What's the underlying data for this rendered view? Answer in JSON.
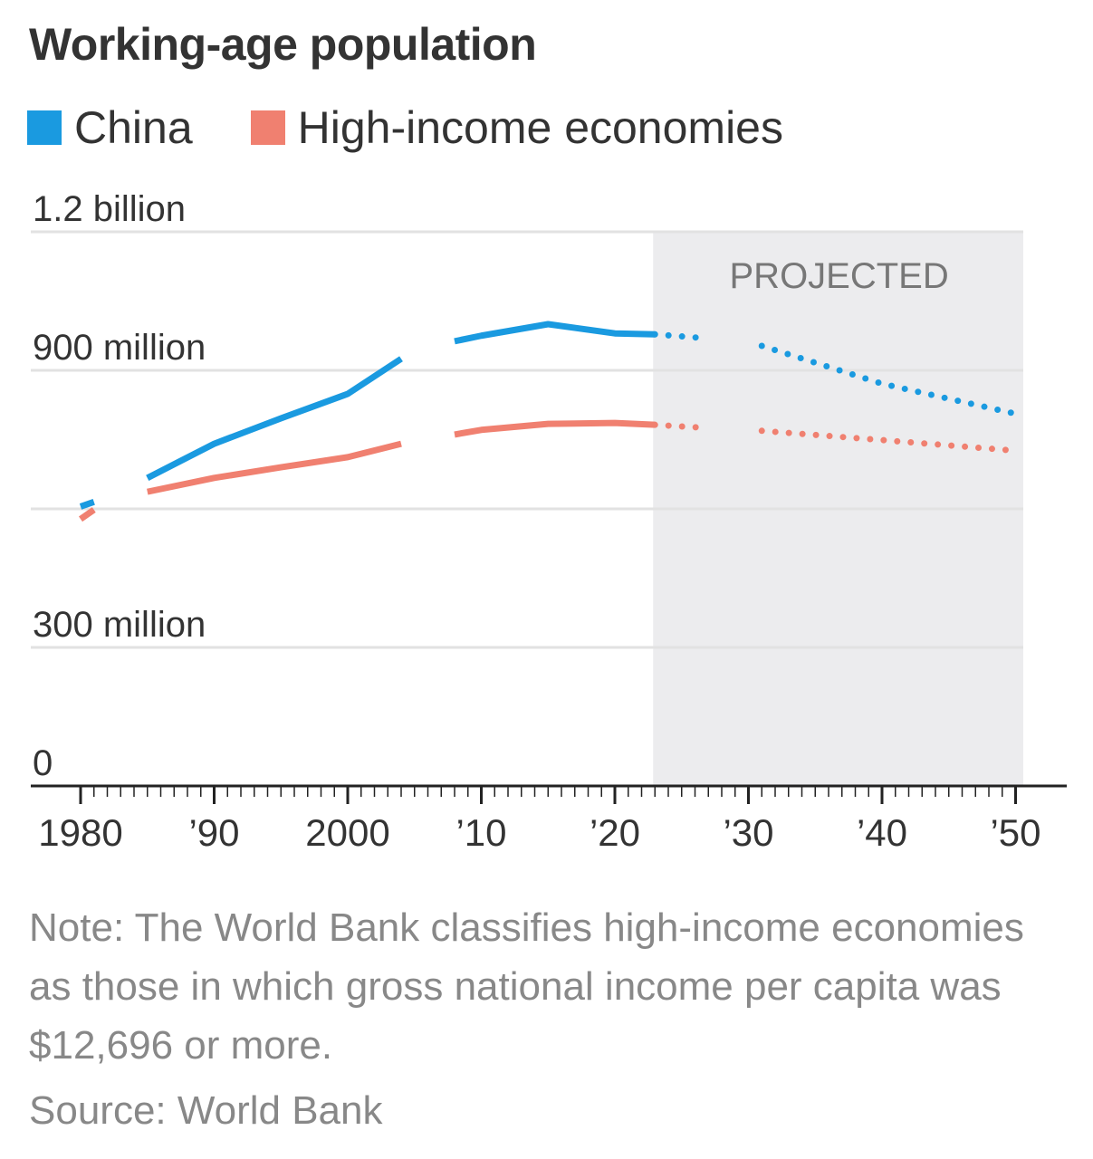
{
  "title": "Working-age population",
  "note": "Note: The World Bank classifies high-income economies as those in which gross national income per capita was $12,696 or more.",
  "source": "Source: World Bank",
  "chart_data": {
    "type": "line",
    "title": "Working-age population",
    "legend_placement": "top-left",
    "colors": {
      "China": "#1a9ae0",
      "High-income economies": "#f08070",
      "projected_bg": "#ececee",
      "grid": "#e2e2e2"
    },
    "ylim": [
      0,
      1200
    ],
    "yticks": [
      0,
      300,
      600,
      900,
      1200
    ],
    "ytick_labels": [
      "0",
      "300 million",
      "",
      "900 million",
      "1.2 billion"
    ],
    "xlim": [
      1980,
      2050
    ],
    "xticks": [
      1980,
      1990,
      2000,
      2010,
      2020,
      2030,
      2040,
      2050
    ],
    "xtick_labels": [
      "1980",
      "’90",
      "2000",
      "’10",
      "’20",
      "’30",
      "’40",
      "’50"
    ],
    "grid": true,
    "projected": {
      "label": "PROJECTED",
      "from": 2023,
      "to": 2050
    },
    "x": [
      1980,
      1981,
      1985,
      1990,
      1995,
      2000,
      2004,
      2008,
      2010,
      2015,
      2020,
      2023,
      2027,
      2031,
      2040,
      2050
    ],
    "series": [
      {
        "name": "China",
        "values": [
          605,
          615,
          667,
          741,
          796,
          849,
          925,
          963,
          975,
          1000,
          980,
          978,
          969,
          953,
          871,
          806
        ],
        "gaps_after": [
          1981,
          2004,
          2027
        ]
      },
      {
        "name": "High-income economies",
        "values": [
          578,
          598,
          637,
          667,
          690,
          712,
          741,
          761,
          771,
          784,
          786,
          782,
          775,
          769,
          749,
          726
        ],
        "gaps_after": [
          1981,
          2004,
          2027
        ]
      }
    ]
  }
}
